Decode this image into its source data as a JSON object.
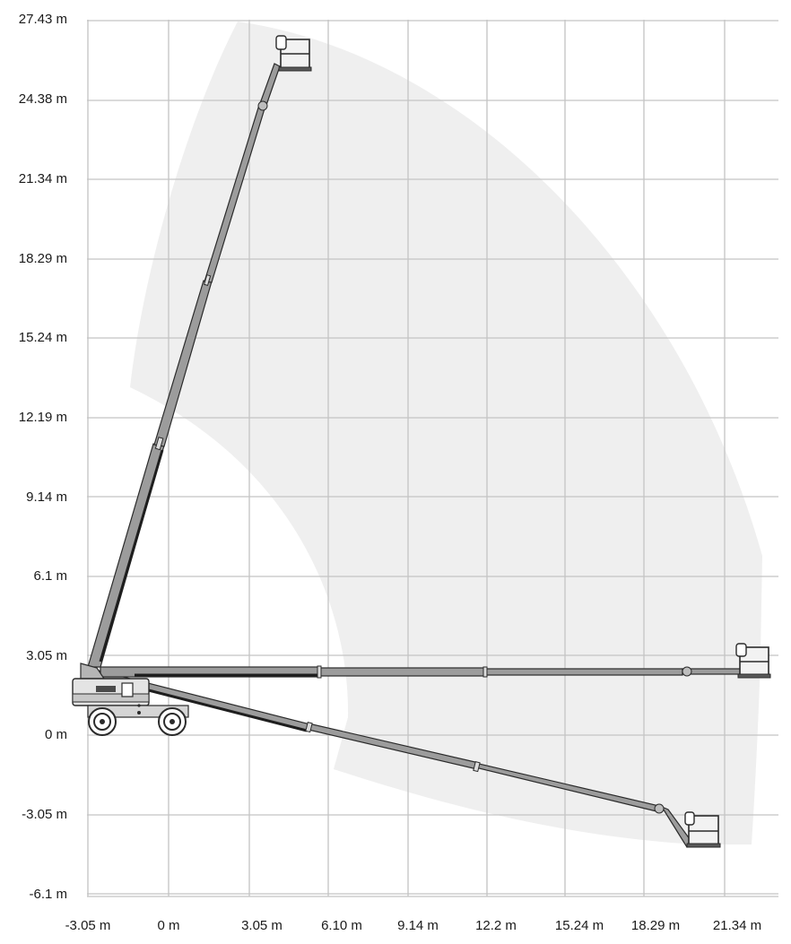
{
  "chart_data": {
    "type": "diagram",
    "y_axis": {
      "labels": [
        "27.43 m",
        "24.38 m",
        "21.34 m",
        "18.29 m",
        "15.24 m",
        "12.19 m",
        "9.14 m",
        "6.1 m",
        "3.05 m",
        "0 m",
        "-3.05 m",
        "-6.1 m"
      ],
      "values": [
        27.43,
        24.38,
        21.34,
        18.29,
        15.24,
        12.19,
        9.14,
        6.1,
        3.05,
        0,
        -3.05,
        -6.1
      ]
    },
    "x_axis": {
      "labels": [
        "-3.05 m",
        "0 m",
        "3.05 m",
        "6.10 m",
        "9.14 m",
        "12.2 m",
        "15.24 m",
        "18.29 m",
        "21.34 m"
      ],
      "values": [
        -3.05,
        0,
        3.05,
        6.1,
        9.14,
        12.2,
        15.24,
        18.29,
        21.34
      ]
    },
    "grid": true,
    "colors": {
      "grid": "#c4c4c4",
      "envelope": "#efefef",
      "boom": "#9c9c9c",
      "boom_outline": "#2b2b2b",
      "platform": "#f2f2f2"
    },
    "boom_positions": [
      {
        "name": "max-height",
        "platform_height_m": 25.9,
        "platform_outreach_m": 4.7
      },
      {
        "name": "max-outreach",
        "platform_height_m": 2.6,
        "platform_outreach_m": 22.2
      },
      {
        "name": "below-grade",
        "platform_height_m": -4.0,
        "platform_outreach_m": 19.5
      }
    ]
  }
}
